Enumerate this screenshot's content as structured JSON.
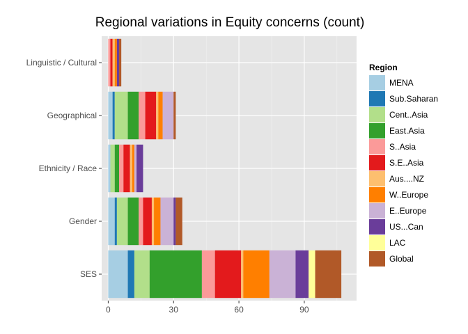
{
  "chart_data": {
    "type": "bar",
    "orientation": "horizontal",
    "stacked": true,
    "title": "Regional variations in Equity concerns (count)",
    "xlabel": "",
    "ylabel": "",
    "categories": [
      "SES",
      "Gender",
      "Ethnicity / Race",
      "Geographical",
      "Linguistic / Cultural"
    ],
    "xlim": [
      -3,
      114
    ],
    "x_ticks": [
      0,
      30,
      60,
      90
    ],
    "grid": true,
    "legend_position": "right",
    "legend_title": "Region",
    "series": [
      {
        "name": "MENA",
        "color": "#A6CEE3",
        "values": [
          9,
          3,
          1,
          2,
          0
        ]
      },
      {
        "name": "Sub.Saharan",
        "color": "#1F78B4",
        "values": [
          3,
          1,
          0,
          1,
          0
        ]
      },
      {
        "name": "Cent..Asia",
        "color": "#B2DF8A",
        "values": [
          7,
          5,
          2,
          6,
          0
        ]
      },
      {
        "name": "East.Asia",
        "color": "#33A02C",
        "values": [
          24,
          5,
          2,
          5,
          0
        ]
      },
      {
        "name": "S..Asia",
        "color": "#FB9A99",
        "values": [
          6,
          2,
          2,
          3,
          1
        ]
      },
      {
        "name": "S.E..Asia",
        "color": "#E31A1C",
        "values": [
          12,
          4,
          3,
          5,
          1
        ]
      },
      {
        "name": "Aus....NZ",
        "color": "#FDBF6F",
        "values": [
          1,
          1,
          1,
          1,
          1
        ]
      },
      {
        "name": "W..Europe",
        "color": "#FF7F00",
        "values": [
          12,
          3,
          1,
          2,
          1
        ]
      },
      {
        "name": "E..Europe",
        "color": "#CAB2D6",
        "values": [
          12,
          6,
          1,
          5,
          0
        ]
      },
      {
        "name": "US...Can",
        "color": "#6A3D9A",
        "values": [
          6,
          1,
          3,
          0,
          1
        ]
      },
      {
        "name": "LAC",
        "color": "#FFFF99",
        "values": [
          3,
          0,
          0,
          0,
          0
        ]
      },
      {
        "name": "Global",
        "color": "#B15928",
        "values": [
          12,
          3,
          0,
          1,
          1
        ]
      }
    ]
  }
}
